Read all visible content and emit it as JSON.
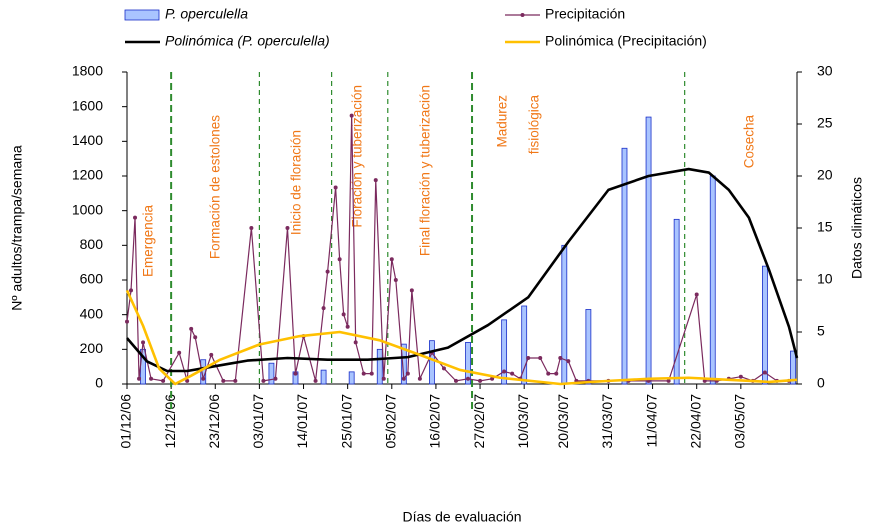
{
  "chart_data": {
    "type": "combo",
    "x_label": "Días de evaluación",
    "y_label": "Nº adultos/trampa/semana",
    "y2_label": "Datos climáticos",
    "xlim": [
      "01/12/06",
      "17/05/07"
    ],
    "xticks": [
      "01/12/06",
      "12/12/06",
      "23/12/06",
      "03/01/07",
      "14/01/07",
      "25/01/07",
      "05/02/07",
      "16/02/07",
      "27/02/07",
      "10/03/07",
      "20/03/07",
      "31/03/07",
      "11/04/07",
      "22/04/07",
      "03/05/07"
    ],
    "ylim": [
      0,
      1800
    ],
    "yticks": [
      0,
      200,
      400,
      600,
      800,
      1000,
      1200,
      1400,
      1600,
      1800
    ],
    "y2lim": [
      0,
      30
    ],
    "y2ticks": [
      0,
      5,
      10,
      15,
      20,
      25,
      30
    ],
    "grid": false,
    "series": [
      {
        "name": "P. operculella",
        "type": "bar",
        "italic": true,
        "color": "#a9c4ff",
        "axis": "y",
        "x": [
          "05/12/06",
          "20/12/06",
          "06/01/07",
          "12/01/07",
          "19/01/07",
          "26/01/07",
          "02/02/07",
          "08/02/07",
          "15/02/07",
          "24/02/07",
          "05/03/07",
          "10/03/07",
          "20/03/07",
          "26/03/07",
          "04/04/07",
          "10/04/07",
          "17/04/07",
          "26/04/07",
          "09/05/07",
          "16/05/07"
        ],
        "values": [
          200,
          140,
          120,
          70,
          80,
          70,
          200,
          230,
          250,
          240,
          370,
          450,
          800,
          430,
          1360,
          1540,
          950,
          1200,
          680,
          190
        ]
      },
      {
        "name": "Precipitación",
        "type": "line",
        "italic": false,
        "color": "#7b2a5e",
        "axis": "y2",
        "markers": true,
        "x": [
          "01/12/06",
          "02/12/06",
          "03/12/06",
          "04/12/06",
          "05/12/06",
          "07/12/06",
          "10/12/06",
          "14/12/06",
          "16/12/06",
          "17/12/06",
          "18/12/06",
          "20/12/06",
          "22/12/06",
          "25/12/06",
          "28/12/06",
          "01/01/07",
          "04/01/07",
          "07/01/07",
          "10/01/07",
          "12/01/07",
          "14/01/07",
          "17/01/07",
          "19/01/07",
          "20/01/07",
          "22/01/07",
          "23/01/07",
          "24/01/07",
          "25/01/07",
          "26/01/07",
          "27/01/07",
          "29/01/07",
          "31/01/07",
          "01/02/07",
          "03/02/07",
          "05/02/07",
          "06/02/07",
          "08/02/07",
          "09/02/07",
          "10/02/07",
          "12/02/07",
          "15/02/07",
          "18/02/07",
          "21/02/07",
          "24/02/07",
          "27/02/07",
          "02/03/07",
          "05/03/07",
          "07/03/07",
          "09/03/07",
          "11/03/07",
          "14/03/07",
          "16/03/07",
          "18/03/07",
          "19/03/07",
          "21/03/07",
          "23/03/07",
          "26/03/07",
          "31/03/07",
          "05/04/07",
          "10/04/07",
          "15/04/07",
          "22/04/07",
          "24/04/07",
          "27/04/07",
          "30/04/07",
          "03/05/07",
          "06/05/07",
          "09/05/07",
          "12/05/07",
          "15/05/07"
        ],
        "values": [
          6,
          9,
          16,
          0.5,
          4,
          0.5,
          0.3,
          3,
          0.3,
          5.3,
          4.5,
          0.5,
          2.8,
          0.3,
          0.3,
          15,
          0.3,
          0.5,
          15,
          1,
          4.6,
          0.3,
          7.3,
          10.8,
          18.9,
          12,
          6.7,
          5.5,
          25.8,
          4,
          1,
          1,
          19.6,
          0.5,
          12,
          10,
          0.5,
          1,
          9,
          0.5,
          3,
          1.5,
          0.3,
          0.5,
          0.3,
          0.5,
          1.2,
          1,
          0.5,
          2.5,
          2.5,
          1,
          1,
          2.5,
          2.2,
          0.3,
          0.3,
          0.3,
          0.3,
          0.3,
          0.3,
          8.6,
          0.3,
          0.3,
          0.5,
          0.7,
          0.3,
          1.1,
          0.3,
          0.3
        ]
      },
      {
        "name": "Polinómica (P. operculella)",
        "type": "trend",
        "italic": true,
        "color": "#000000",
        "axis": "y",
        "x": [
          "01/12/06",
          "06/12/06",
          "11/12/06",
          "16/12/06",
          "21/12/06",
          "26/12/06",
          "31/12/06",
          "10/01/07",
          "20/01/07",
          "30/01/07",
          "09/02/07",
          "19/02/07",
          "01/03/07",
          "11/03/07",
          "21/03/07",
          "31/03/07",
          "10/04/07",
          "20/04/07",
          "25/04/07",
          "30/04/07",
          "05/05/07",
          "10/05/07",
          "15/05/07",
          "17/05/07"
        ],
        "values": [
          265,
          130,
          75,
          75,
          95,
          115,
          135,
          150,
          140,
          140,
          155,
          210,
          340,
          500,
          820,
          1120,
          1200,
          1240,
          1220,
          1120,
          960,
          660,
          330,
          150
        ]
      },
      {
        "name": "Polinómica (Precipitación)",
        "type": "trend",
        "italic": false,
        "color": "#ffc000",
        "axis": "y2",
        "x": [
          "01/12/06",
          "05/12/06",
          "09/12/06",
          "13/12/06",
          "17/12/06",
          "24/12/06",
          "03/01/07",
          "13/01/07",
          "23/01/07",
          "02/02/07",
          "12/02/07",
          "22/02/07",
          "04/03/07",
          "19/03/07",
          "31/03/07",
          "10/04/07",
          "20/04/07",
          "30/04/07",
          "10/05/07",
          "17/05/07"
        ],
        "values": [
          9,
          5.6,
          1.5,
          0,
          0.8,
          2.3,
          3.8,
          4.6,
          5,
          4.2,
          2.8,
          1.35,
          0.6,
          0,
          0.3,
          0.5,
          0.6,
          0.4,
          0.2,
          0.4
        ]
      }
    ],
    "phases": [
      {
        "start": "12/12/06",
        "style": "bold",
        "label": [
          "Emergencia"
        ]
      },
      {
        "start": "03/01/07",
        "style": "thin",
        "label": [
          "Formación de estolones"
        ]
      },
      {
        "start": "21/01/07",
        "style": "thin",
        "label": [
          "Inicio de floración"
        ]
      },
      {
        "start": "04/02/07",
        "style": "thin",
        "label": [
          "Floración y tuberización"
        ]
      },
      {
        "start": "25/02/07",
        "style": "bold",
        "label": [
          "Final floración y tuberización"
        ]
      },
      {
        "start": "19/04/07",
        "style": "thin",
        "label": [
          "Madurez",
          "fisiológica"
        ]
      },
      {
        "start": null,
        "style": null,
        "label": [
          "Cosecha"
        ]
      }
    ]
  }
}
